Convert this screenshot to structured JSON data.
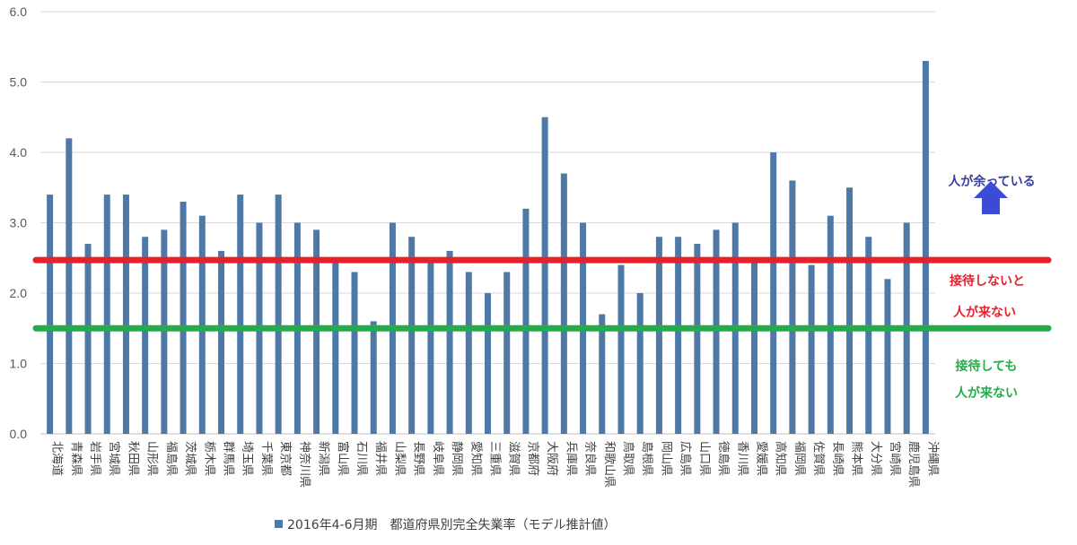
{
  "chart_data": {
    "type": "bar",
    "title": "",
    "xlabel": "",
    "ylabel": "",
    "ylim": [
      0,
      6
    ],
    "y_ticks": [
      "0.0",
      "1.0",
      "2.0",
      "3.0",
      "4.0",
      "5.0",
      "6.0"
    ],
    "grid": "horizontal",
    "legend_position": "bottom",
    "categories": [
      "北海道",
      "青森県",
      "岩手県",
      "宮城県",
      "秋田県",
      "山形県",
      "福島県",
      "茨城県",
      "栃木県",
      "群馬県",
      "埼玉県",
      "千葉県",
      "東京都",
      "神奈川県",
      "新潟県",
      "富山県",
      "石川県",
      "福井県",
      "山梨県",
      "長野県",
      "岐阜県",
      "静岡県",
      "愛知県",
      "三重県",
      "滋賀県",
      "京都府",
      "大阪府",
      "兵庫県",
      "奈良県",
      "和歌山県",
      "鳥取県",
      "島根県",
      "岡山県",
      "広島県",
      "山口県",
      "徳島県",
      "香川県",
      "愛媛県",
      "高知県",
      "福岡県",
      "佐賀県",
      "長崎県",
      "熊本県",
      "大分県",
      "宮崎県",
      "鹿児島県",
      "沖縄県"
    ],
    "series": [
      {
        "name": "2016年4-6月期　都道府県別完全失業率（モデル推計値）",
        "color": "#4e79a7",
        "values": [
          3.4,
          4.2,
          2.7,
          3.4,
          3.4,
          2.8,
          2.9,
          3.3,
          3.1,
          2.6,
          3.4,
          3.0,
          3.4,
          3.0,
          2.9,
          2.5,
          2.3,
          1.6,
          3.0,
          2.8,
          2.5,
          2.6,
          2.3,
          2.0,
          2.3,
          3.2,
          4.5,
          3.7,
          3.0,
          1.7,
          2.4,
          2.0,
          2.8,
          2.8,
          2.7,
          2.9,
          3.0,
          2.5,
          4.0,
          3.6,
          2.4,
          3.1,
          3.5,
          2.8,
          2.2,
          3.0,
          5.3
        ]
      }
    ],
    "reference_lines": [
      {
        "value": 2.47,
        "color": "#e8202a"
      },
      {
        "value": 1.5,
        "color": "#22ac4a"
      }
    ],
    "annotations": {
      "surplus": {
        "text": "人が余っている",
        "color": "#3a3f9e"
      },
      "red_line_1": {
        "text": "接待しないと",
        "color": "#e8202a"
      },
      "red_line_2": {
        "text": "人が来ない",
        "color": "#e8202a"
      },
      "green_line_1": {
        "text": "接待しても",
        "color": "#22ac4a"
      },
      "green_line_2": {
        "text": "人が来ない",
        "color": "#22ac4a"
      },
      "arrow_color": "#3b4bd6"
    }
  }
}
